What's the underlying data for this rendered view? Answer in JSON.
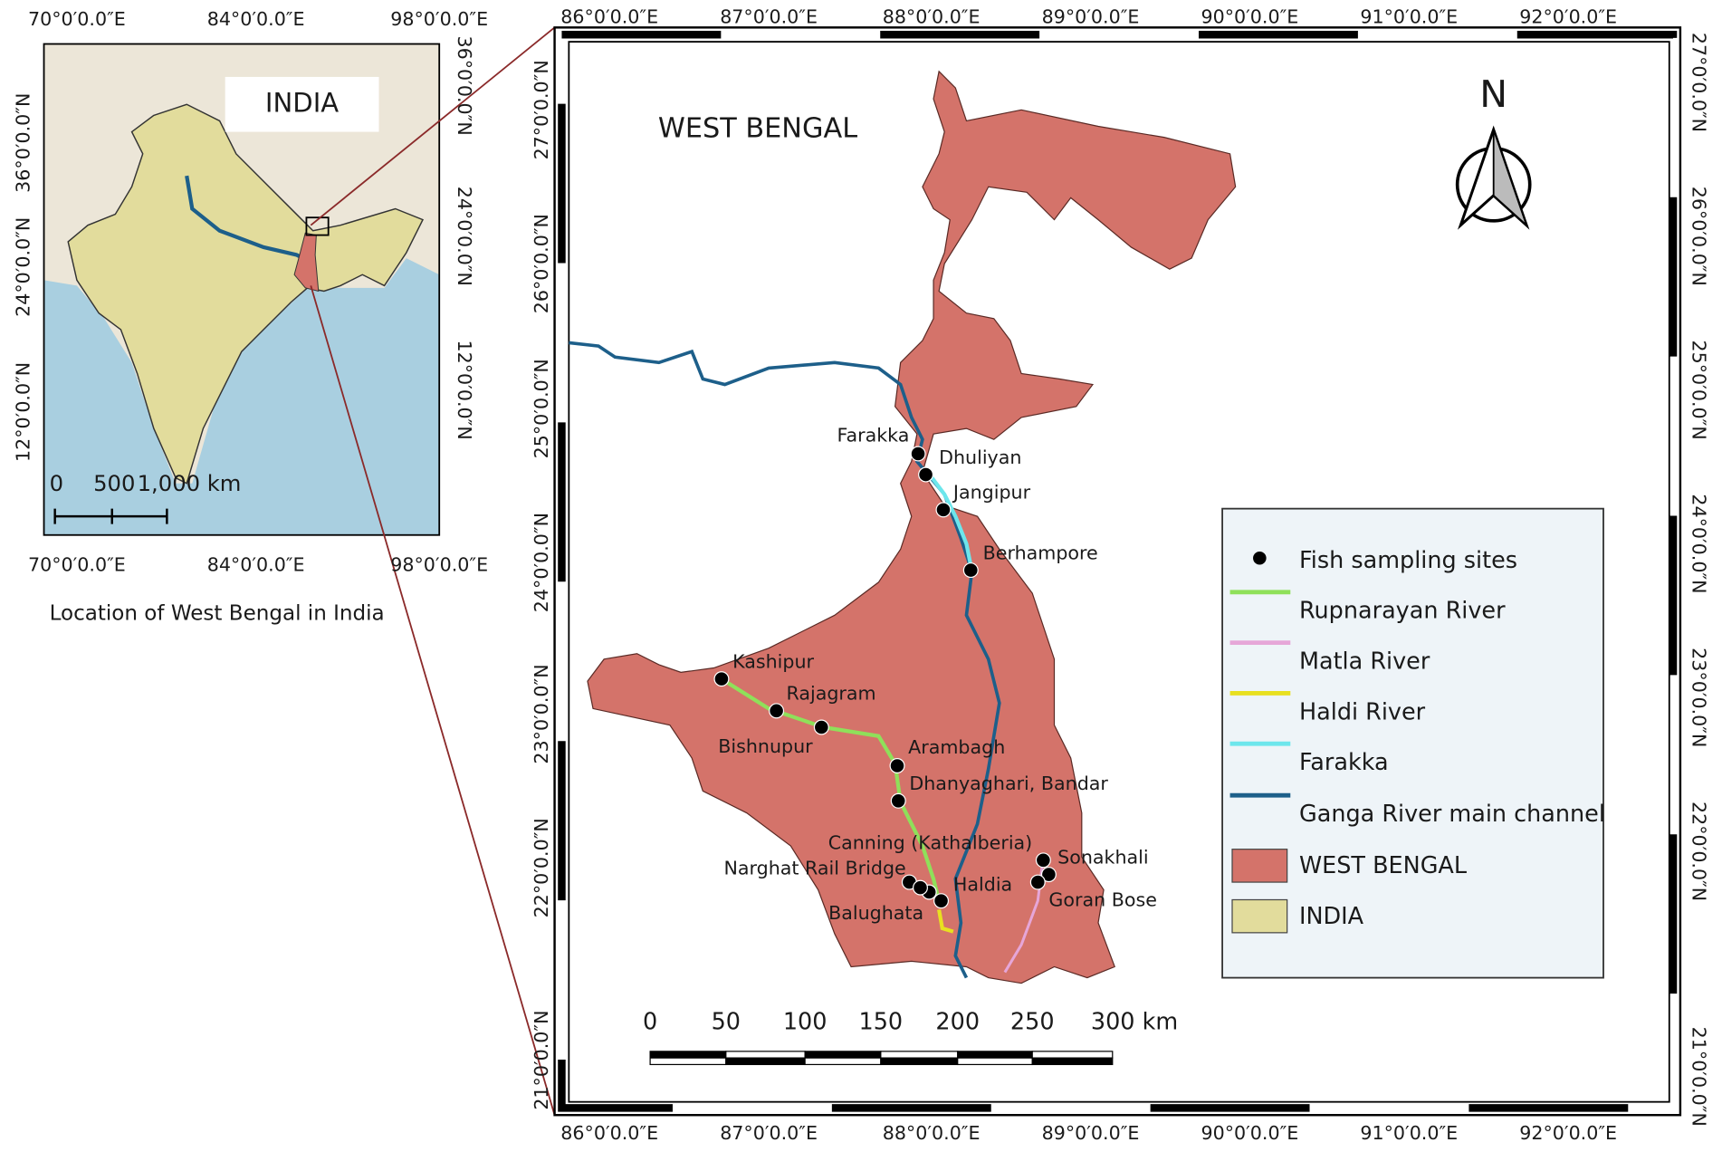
{
  "inset": {
    "title": "INDIA",
    "caption": "Location of West Bengal in India",
    "top_labels": [
      "70°0′0.0″E",
      "84°0′0.0″E",
      "98°0′0.0″E"
    ],
    "bottom_labels": [
      "70°0′0.0″E",
      "84°0′0.0″E",
      "98°0′0.0″E"
    ],
    "left_labels": [
      "36°0′0.0″N",
      "24°0′0.0″N",
      "12°0′0.0″N"
    ],
    "right_labels": [
      "36°0′0.0″N",
      "24°0′0.0″N",
      "12°0′0.0″N"
    ],
    "scale_labels": [
      "0",
      "500",
      "1,000 km"
    ]
  },
  "main": {
    "title": "WEST BENGAL",
    "north": "N",
    "top_labels": [
      "86°0′0.0″E",
      "87°0′0.0″E",
      "88°0′0.0″E",
      "89°0′0.0″E",
      "90°0′0.0″E",
      "91°0′0.0″E",
      "92°0′0.0″E"
    ],
    "bottom_labels": [
      "86°0′0.0″E",
      "87°0′0.0″E",
      "88°0′0.0″E",
      "89°0′0.0″E",
      "90°0′0.0″E",
      "91°0′0.0″E",
      "92°0′0.0″E"
    ],
    "left_labels": [
      "27°0′0.0″N",
      "26°0′0.0″N",
      "25°0′0.0″N",
      "24°0′0.0″N",
      "23°0′0.0″N",
      "22°0′0.0″N",
      "21°0′0.0″N"
    ],
    "right_labels": [
      "27°0′0.0″N",
      "26°0′0.0″N",
      "25°0′0.0″N",
      "24°0′0.0″N",
      "23°0′0.0″N",
      "22°0′0.0″N",
      "21°0′0.0″N"
    ],
    "sites": [
      "Farakka",
      "Dhuliyan",
      "Jangipur",
      "Berhampore",
      "Kashipur",
      "Rajagram",
      "Bishnupur",
      "Arambagh",
      "Dhanyaghari, Bandar",
      "Canning (Kathalberia)",
      "Narghat Rail Bridge",
      "Haldia",
      "Balughata",
      "Sonakhali",
      "Goran Bose"
    ],
    "scale_labels": [
      "0",
      "50",
      "100",
      "150",
      "200",
      "250",
      "300 km"
    ]
  },
  "legend": [
    {
      "name": "Fish sampling sites",
      "color": "#000000"
    },
    {
      "name": "Rupnarayan River",
      "color": "#8fe05a"
    },
    {
      "name": "Matla River",
      "color": "#e6a6d8"
    },
    {
      "name": "Haldi River",
      "color": "#e8e020"
    },
    {
      "name": "Farakka",
      "color": "#6de6ec"
    },
    {
      "name": "Ganga River main channel",
      "color": "#1d5f8a"
    },
    {
      "name": "WEST BENGAL",
      "color": "#d4736a"
    },
    {
      "name": "INDIA",
      "color": "#e2dc9c"
    }
  ]
}
